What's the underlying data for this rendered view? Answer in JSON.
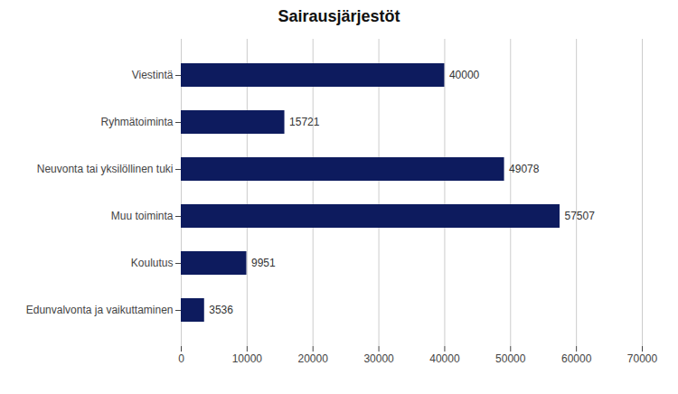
{
  "chart_data": {
    "type": "bar",
    "orientation": "horizontal",
    "title": "Sairausjärjestöt",
    "categories": [
      "Viestintä",
      "Ryhmätoiminta",
      "Neuvonta tai yksilöllinen tuki",
      "Muu toiminta",
      "Koulutus",
      "Edunvalvonta ja vaikuttaminen"
    ],
    "values": [
      40000,
      15721,
      49078,
      57507,
      9951,
      3536
    ],
    "color": "#0d1b5e",
    "xlim": [
      0,
      70000
    ],
    "xticks": [
      0,
      10000,
      20000,
      30000,
      40000,
      50000,
      60000,
      70000
    ],
    "grid": true,
    "data_labels": true
  }
}
